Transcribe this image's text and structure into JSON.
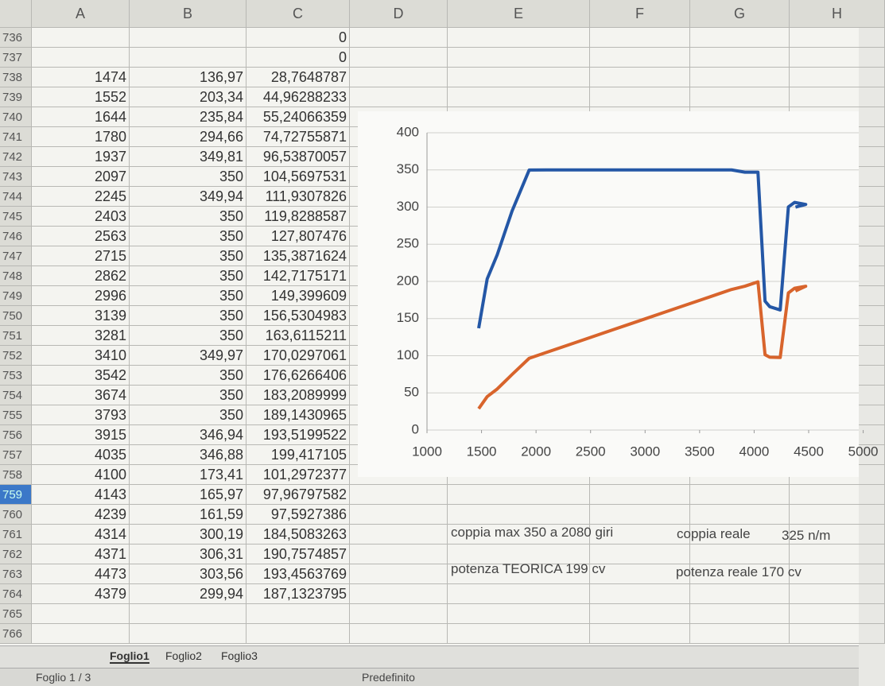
{
  "columns": [
    "A",
    "B",
    "C",
    "D",
    "E",
    "F",
    "G",
    "H"
  ],
  "rows": [
    {
      "number": "736",
      "cells": [
        null,
        null,
        "0"
      ]
    },
    {
      "number": "737",
      "cells": [
        null,
        null,
        "0"
      ]
    },
    {
      "number": "738",
      "cells": [
        "1474",
        "136,97",
        "28,7648787"
      ]
    },
    {
      "number": "739",
      "cells": [
        "1552",
        "203,34",
        "44,96288233"
      ]
    },
    {
      "number": "740",
      "cells": [
        "1644",
        "235,84",
        "55,24066359"
      ]
    },
    {
      "number": "741",
      "cells": [
        "1780",
        "294,66",
        "74,72755871"
      ]
    },
    {
      "number": "742",
      "cells": [
        "1937",
        "349,81",
        "96,53870057"
      ]
    },
    {
      "number": "743",
      "cells": [
        "2097",
        "350",
        "104,5697531"
      ]
    },
    {
      "number": "744",
      "cells": [
        "2245",
        "349,94",
        "111,9307826"
      ]
    },
    {
      "number": "745",
      "cells": [
        "2403",
        "350",
        "119,8288587"
      ]
    },
    {
      "number": "746",
      "cells": [
        "2563",
        "350",
        "127,807476"
      ]
    },
    {
      "number": "747",
      "cells": [
        "2715",
        "350",
        "135,3871624"
      ]
    },
    {
      "number": "748",
      "cells": [
        "2862",
        "350",
        "142,7175171"
      ]
    },
    {
      "number": "749",
      "cells": [
        "2996",
        "350",
        "149,399609"
      ]
    },
    {
      "number": "750",
      "cells": [
        "3139",
        "350",
        "156,5304983"
      ]
    },
    {
      "number": "751",
      "cells": [
        "3281",
        "350",
        "163,6115211"
      ]
    },
    {
      "number": "752",
      "cells": [
        "3410",
        "349,97",
        "170,0297061"
      ]
    },
    {
      "number": "753",
      "cells": [
        "3542",
        "350",
        "176,6266406"
      ]
    },
    {
      "number": "754",
      "cells": [
        "3674",
        "350",
        "183,2089999"
      ]
    },
    {
      "number": "755",
      "cells": [
        "3793",
        "350",
        "189,1430965"
      ]
    },
    {
      "number": "756",
      "cells": [
        "3915",
        "346,94",
        "193,5199522"
      ]
    },
    {
      "number": "757",
      "cells": [
        "4035",
        "346,88",
        "199,417105"
      ]
    },
    {
      "number": "758",
      "cells": [
        "4100",
        "173,41",
        "101,2972377"
      ]
    },
    {
      "number": "759",
      "cells": [
        "4143",
        "165,97",
        "97,96797582"
      ]
    },
    {
      "number": "760",
      "cells": [
        "4239",
        "161,59",
        "97,5927386"
      ]
    },
    {
      "number": "761",
      "cells": [
        "4314",
        "300,19",
        "184,5083263"
      ]
    },
    {
      "number": "762",
      "cells": [
        "4371",
        "306,31",
        "190,7574857"
      ]
    },
    {
      "number": "763",
      "cells": [
        "4473",
        "303,56",
        "193,4563769"
      ]
    },
    {
      "number": "764",
      "cells": [
        "4379",
        "299,94",
        "187,1323795"
      ]
    },
    {
      "number": "765",
      "cells": []
    },
    {
      "number": "766",
      "cells": []
    }
  ],
  "chart_data": {
    "type": "line",
    "x": [
      1474,
      1552,
      1644,
      1780,
      1937,
      2097,
      2245,
      2403,
      2563,
      2715,
      2862,
      2996,
      3139,
      3281,
      3410,
      3542,
      3674,
      3793,
      3915,
      4035,
      4100,
      4143,
      4239,
      4314,
      4371,
      4473,
      4379
    ],
    "series": [
      {
        "color": "#2457a6",
        "values": [
          136.97,
          203.34,
          235.84,
          294.66,
          349.81,
          350,
          349.94,
          350,
          350,
          350,
          350,
          350,
          350,
          350,
          349.97,
          350,
          350,
          350,
          346.94,
          346.88,
          173.41,
          165.97,
          161.59,
          300.19,
          306.31,
          303.56,
          299.94
        ]
      },
      {
        "color": "#d8642c",
        "values": [
          28.7648787,
          44.96288233,
          55.24066359,
          74.72755871,
          96.53870057,
          104.5697531,
          111.9307826,
          119.8288587,
          127.807476,
          135.3871624,
          142.7175171,
          149.399609,
          156.5304983,
          163.6115211,
          170.0297061,
          176.6266406,
          183.2089999,
          189.1430965,
          193.5199522,
          199.417105,
          101.2972377,
          97.96797582,
          97.5927386,
          184.5083263,
          190.7574857,
          193.4563769,
          187.1323795
        ]
      }
    ],
    "xlim": [
      1000,
      5000
    ],
    "xticks": [
      1000,
      1500,
      2000,
      2500,
      3000,
      3500,
      4000,
      4500,
      5000
    ],
    "ylim": [
      0,
      400
    ],
    "yticks": [
      0,
      50,
      100,
      150,
      200,
      250,
      300,
      350,
      400
    ],
    "grid": true
  },
  "notes": [
    "coppia  max 350 a 2080 giri",
    "coppia reale",
    "325 n/m",
    "potenza TEORICA  199 cv",
    "potenza reale  170 cv"
  ],
  "sheet_tabs": [
    "Foglio1",
    "Foglio2",
    "Foglio3"
  ],
  "status": [
    "Foglio 1 / 3",
    "Predefinito"
  ]
}
